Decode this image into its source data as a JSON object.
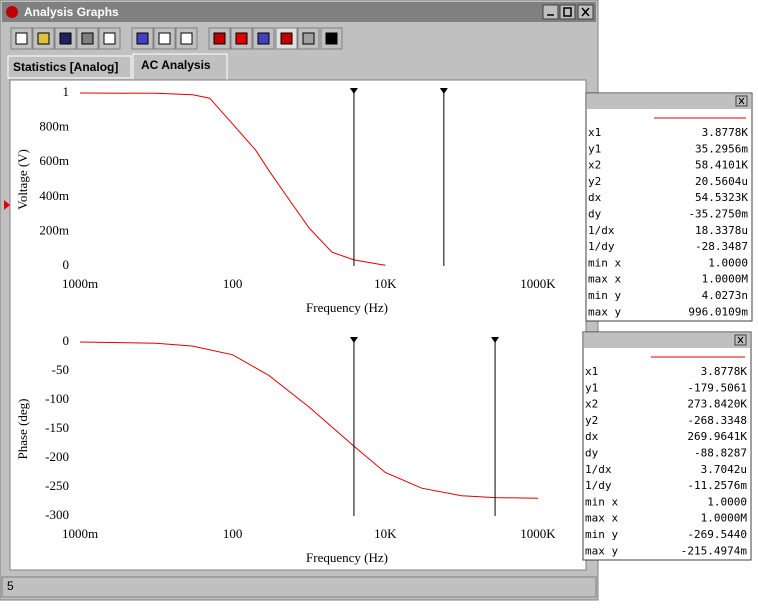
{
  "window": {
    "title": "Analysis Graphs"
  },
  "tabs": [
    "Statistics [Analog]",
    "AC Analysis"
  ],
  "status": "5",
  "charts": [
    {
      "type": "line",
      "xlabel": "Frequency (Hz)",
      "ylabel": "Voltage (V)",
      "xscale": "log",
      "xlim": [
        1,
        1000000
      ],
      "xticks": [
        {
          "value": 1,
          "label": "1000m"
        },
        {
          "value": 100,
          "label": "100"
        },
        {
          "value": 10000,
          "label": "10K"
        },
        {
          "value": 1000000,
          "label": "1000K"
        }
      ],
      "ylim": [
        0,
        1
      ],
      "yticks": [
        {
          "value": 0,
          "label": "0"
        },
        {
          "value": 0.2,
          "label": "200m"
        },
        {
          "value": 0.4,
          "label": "400m"
        },
        {
          "value": 0.6,
          "label": "600m"
        },
        {
          "value": 0.8,
          "label": "800m"
        },
        {
          "value": 1,
          "label": "1"
        }
      ],
      "x": [
        1,
        10,
        30,
        50,
        100,
        200,
        300,
        500,
        1000,
        2000,
        3877.8,
        10000
      ],
      "series": [
        {
          "color": "#e00000",
          "values": [
            1,
            0.998,
            0.99,
            0.97,
            0.82,
            0.67,
            0.55,
            0.41,
            0.22,
            0.08,
            0.035,
            0.004
          ]
        }
      ],
      "cursors": [
        3877.8,
        58410.1
      ]
    },
    {
      "type": "line",
      "xlabel": "Frequency (Hz)",
      "ylabel": "Phase (deg)",
      "xscale": "log",
      "xlim": [
        1,
        1000000
      ],
      "xticks": [
        {
          "value": 1,
          "label": "1000m"
        },
        {
          "value": 100,
          "label": "100"
        },
        {
          "value": 10000,
          "label": "10K"
        },
        {
          "value": 1000000,
          "label": "1000K"
        }
      ],
      "ylim": [
        -300,
        0
      ],
      "yticks": [
        -300,
        -250,
        -200,
        -150,
        -100,
        -50,
        0
      ],
      "x": [
        1,
        10,
        30,
        100,
        300,
        1000,
        3877.8,
        10000,
        30000,
        100000,
        273842,
        1000000
      ],
      "series": [
        {
          "color": "#e00000",
          "values": [
            0,
            -2,
            -7,
            -22,
            -58,
            -112,
            -179.5,
            -225,
            -252,
            -265,
            -268.3,
            -269.5
          ]
        }
      ],
      "cursors": [
        3877.8,
        273842
      ]
    }
  ],
  "readouts": [
    {
      "rows": [
        [
          "x1",
          "3.8778K"
        ],
        [
          "y1",
          "35.2956m"
        ],
        [
          "x2",
          "58.4101K"
        ],
        [
          "y2",
          "20.5604u"
        ],
        [
          "dx",
          "54.5323K"
        ],
        [
          "dy",
          "-35.2750m"
        ],
        [
          "1/dx",
          "18.3378u"
        ],
        [
          "1/dy",
          "-28.3487"
        ],
        [
          "min x",
          "1.0000"
        ],
        [
          "max x",
          "1.0000M"
        ],
        [
          "min y",
          "4.0273n"
        ],
        [
          "max y",
          "996.0109m"
        ]
      ]
    },
    {
      "rows": [
        [
          "x1",
          "3.8778K"
        ],
        [
          "y1",
          "-179.5061"
        ],
        [
          "x2",
          "273.8420K"
        ],
        [
          "y2",
          "-268.3348"
        ],
        [
          "dx",
          "269.9641K"
        ],
        [
          "dy",
          "-88.8287"
        ],
        [
          "1/dx",
          "3.7042u"
        ],
        [
          "1/dy",
          "-11.2576m"
        ],
        [
          "min x",
          "1.0000"
        ],
        [
          "max x",
          "1.0000M"
        ],
        [
          "min y",
          "-269.5440"
        ],
        [
          "max y",
          "-215.4974m"
        ]
      ]
    }
  ]
}
